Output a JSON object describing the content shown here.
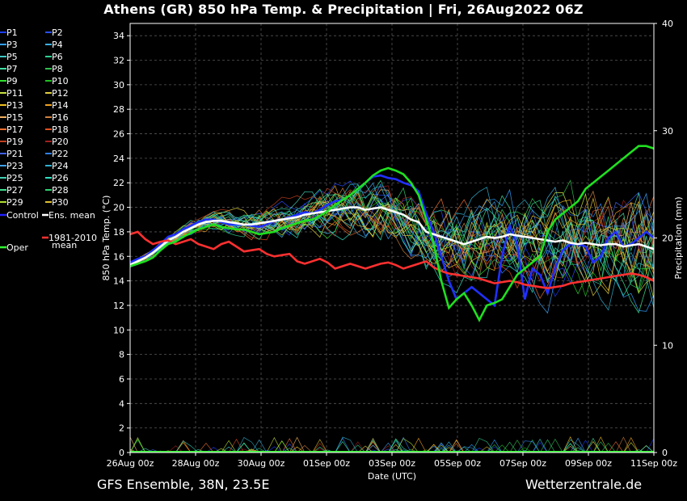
{
  "title": "Athens  (GR)  850 hPa Temp. & Precipitation | Fri, 26Aug2022 06Z",
  "footer": {
    "left": "GFS Ensemble, 38N, 23.5E",
    "right": "Wetterzentrale.de"
  },
  "chart_data": {
    "type": "line",
    "xlabel": "Date (UTC)",
    "ylabel": "850 hPa Temp. (°C)",
    "y2label": "Precipitation (mm)",
    "xlim": [
      "26Aug 00z",
      "11Sep 00z"
    ],
    "x_ticks": [
      "26Aug 00z",
      "28Aug 00z",
      "30Aug 00z",
      "01Sep 00z",
      "03Sep 00z",
      "05Sep 00z",
      "07Sep 00z",
      "09Sep 00z",
      "11Sep 00z"
    ],
    "ylim": [
      0,
      35
    ],
    "y_ticks": [
      0,
      2,
      4,
      6,
      8,
      10,
      12,
      14,
      16,
      18,
      20,
      22,
      24,
      26,
      28,
      30,
      32,
      34
    ],
    "y2lim": [
      0,
      40
    ],
    "y2_ticks": [
      0,
      10,
      20,
      30,
      40
    ],
    "grid": true,
    "legend_position": "left",
    "legend": [
      {
        "label": "P1",
        "color": "#1a3cff"
      },
      {
        "label": "P2",
        "color": "#2a4fff"
      },
      {
        "label": "P3",
        "color": "#30a0ff"
      },
      {
        "label": "P4",
        "color": "#3cb0e0"
      },
      {
        "label": "P5",
        "color": "#40c8c8"
      },
      {
        "label": "P6",
        "color": "#30d090"
      },
      {
        "label": "P7",
        "color": "#40e0a0"
      },
      {
        "label": "P8",
        "color": "#30c050"
      },
      {
        "label": "P9",
        "color": "#30e030"
      },
      {
        "label": "P10",
        "color": "#20c020"
      },
      {
        "label": "P11",
        "color": "#c8e040"
      },
      {
        "label": "P12",
        "color": "#e0d040"
      },
      {
        "label": "P13",
        "color": "#f0c020"
      },
      {
        "label": "P14",
        "color": "#f0a020"
      },
      {
        "label": "P15",
        "color": "#f0b060"
      },
      {
        "label": "P16",
        "color": "#d08040"
      },
      {
        "label": "P17",
        "color": "#f07030"
      },
      {
        "label": "P18",
        "color": "#e05020"
      },
      {
        "label": "P19",
        "color": "#c04020"
      },
      {
        "label": "P20",
        "color": "#a02020"
      },
      {
        "label": "P21",
        "color": "#4060f0"
      },
      {
        "label": "P22",
        "color": "#3080f0"
      },
      {
        "label": "P23",
        "color": "#40a0f0"
      },
      {
        "label": "P24",
        "color": "#30b0d0"
      },
      {
        "label": "P25",
        "color": "#40d0b0"
      },
      {
        "label": "P26",
        "color": "#30e0c0"
      },
      {
        "label": "P27",
        "color": "#40e090"
      },
      {
        "label": "P28",
        "color": "#30d070"
      },
      {
        "label": "P29",
        "color": "#b0e030"
      },
      {
        "label": "P30",
        "color": "#e0c030"
      },
      {
        "label": "Control",
        "color": "#2020ff"
      },
      {
        "label": "Ens. mean",
        "color": "#ffffff"
      },
      {
        "label": "1981-2010 mean",
        "color": "#ff3030"
      },
      {
        "label": "Oper",
        "color": "#30ff30"
      }
    ],
    "series": [
      {
        "name": "Control",
        "color": "#2030ff",
        "values": [
          15.5,
          15.8,
          16.0,
          16.5,
          17.0,
          17.6,
          17.8,
          18.2,
          18.5,
          18.8,
          19.0,
          19.0,
          18.8,
          18.6,
          18.6,
          18.6,
          18.5,
          18.4,
          18.6,
          18.9,
          19.0,
          19.2,
          19.4,
          19.6,
          19.5,
          19.8,
          20.2,
          20.5,
          20.6,
          21.0,
          21.5,
          22.0,
          22.5,
          22.6,
          22.4,
          22.3,
          22.0,
          21.8,
          21.3,
          19.5,
          18.0,
          16.0,
          14.0,
          12.5,
          13.0,
          13.5,
          13.0,
          12.5,
          12.0,
          16.0,
          18.5,
          17.0,
          12.5,
          15.0,
          14.5,
          13.0,
          15.0,
          16.5,
          17.0,
          17.0,
          16.8,
          15.5,
          16.0,
          17.5,
          18.0,
          16.8,
          17.0,
          17.5,
          18.0,
          17.5
        ]
      },
      {
        "name": "Ens. mean",
        "color": "#ffffff",
        "values": [
          15.3,
          15.6,
          15.9,
          16.3,
          16.8,
          17.3,
          17.6,
          18.0,
          18.3,
          18.6,
          18.8,
          18.9,
          18.9,
          18.8,
          18.7,
          18.6,
          18.6,
          18.7,
          18.8,
          18.9,
          19.0,
          19.1,
          19.2,
          19.4,
          19.5,
          19.6,
          19.7,
          19.8,
          19.9,
          20.0,
          20.0,
          19.8,
          19.9,
          20.0,
          19.8,
          19.6,
          19.4,
          19.0,
          18.8,
          18.0,
          17.8,
          17.6,
          17.4,
          17.2,
          17.0,
          17.2,
          17.4,
          17.6,
          17.5,
          17.6,
          17.8,
          17.7,
          17.6,
          17.5,
          17.4,
          17.3,
          17.2,
          17.3,
          17.1,
          17.0,
          17.1,
          17.0,
          16.9,
          17.0,
          17.0,
          16.8,
          16.9,
          17.0,
          16.8,
          16.6
        ]
      },
      {
        "name": "1981-2010 mean",
        "color": "#ff3030",
        "values": [
          17.8,
          18.0,
          17.4,
          17.0,
          17.2,
          17.3,
          17.0,
          17.2,
          17.4,
          17.0,
          16.8,
          16.6,
          17.0,
          17.2,
          16.8,
          16.4,
          16.5,
          16.6,
          16.2,
          16.0,
          16.1,
          16.2,
          15.6,
          15.4,
          15.6,
          15.8,
          15.5,
          15.0,
          15.2,
          15.4,
          15.2,
          15.0,
          15.2,
          15.4,
          15.5,
          15.3,
          15.0,
          15.2,
          15.4,
          15.6,
          15.1,
          14.8,
          14.6,
          14.5,
          14.4,
          14.3,
          14.2,
          14.0,
          13.8,
          13.9,
          14.0,
          13.9,
          13.7,
          13.6,
          13.5,
          13.4,
          13.5,
          13.6,
          13.8,
          13.9,
          14.0,
          14.1,
          14.2,
          14.3,
          14.4,
          14.5,
          14.6,
          14.5,
          14.3,
          14.0
        ]
      },
      {
        "name": "Oper",
        "color": "#20e020",
        "values": [
          15.2,
          15.4,
          15.6,
          15.9,
          16.5,
          17.0,
          17.2,
          17.6,
          17.9,
          18.2,
          18.4,
          18.6,
          18.4,
          18.3,
          18.2,
          18.2,
          18.0,
          17.8,
          17.9,
          18.0,
          18.3,
          18.5,
          18.7,
          18.9,
          19.0,
          19.3,
          19.7,
          20.2,
          20.6,
          21.0,
          21.5,
          22.0,
          22.6,
          23.0,
          23.2,
          23.0,
          22.7,
          22.0,
          21.0,
          19.0,
          17.0,
          14.0,
          11.8,
          12.5,
          13.0,
          12.0,
          10.8,
          12.0,
          12.2,
          12.5,
          13.5,
          14.5,
          15.0,
          15.5,
          16.0,
          18.0,
          19.0,
          19.5,
          20.0,
          20.5,
          21.5,
          22.0,
          22.5,
          23.0,
          23.5,
          24.0,
          24.5,
          25.0,
          25.0,
          24.8
        ]
      }
    ],
    "ensemble_member_count": 30,
    "precipitation": {
      "note": "small precipitation spikes near 0 on right axis",
      "max_mm": 3
    }
  }
}
